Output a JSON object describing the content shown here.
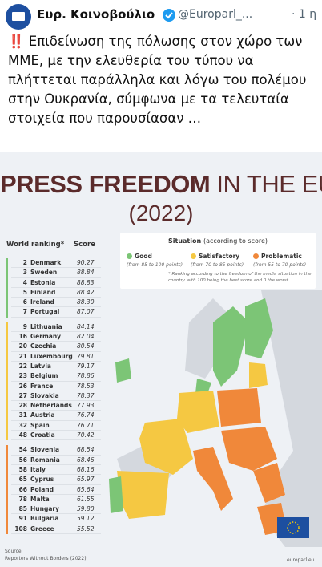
{
  "tweet": {
    "author": "Ευρ. Κοινοβούλιο",
    "handle": "@Europarl_...",
    "time": "· 1 η",
    "text": "‼️ Επιδείνωση της πόλωσης στον χώρο των ΜΜΕ, με την ελευθερία του τύπου να πλήττεται παράλληλα και λόγω του πολέμου στην Ουκρανία, σύμφωνα με τα τελευταία στοιχεία που παρουσίασαν …"
  },
  "infographic": {
    "title_bold": "PRESS FREEDOM",
    "title_light": "IN THE EU",
    "year": "(2022)",
    "ranking_header": "World ranking*",
    "score_header": "Score",
    "groups": [
      {
        "rows": [
          {
            "rank": 2,
            "country": "Denmark",
            "score": "90.27"
          },
          {
            "rank": 3,
            "country": "Sweden",
            "score": "88.84"
          },
          {
            "rank": 4,
            "country": "Estonia",
            "score": "88.83"
          },
          {
            "rank": 5,
            "country": "Finland",
            "score": "88.42"
          },
          {
            "rank": 6,
            "country": "Ireland",
            "score": "88.30"
          },
          {
            "rank": 7,
            "country": "Portugal",
            "score": "87.07"
          }
        ]
      },
      {
        "rows": [
          {
            "rank": 9,
            "country": "Lithuania",
            "score": "84.14"
          },
          {
            "rank": 16,
            "country": "Germany",
            "score": "82.04"
          },
          {
            "rank": 20,
            "country": "Czechia",
            "score": "80.54"
          },
          {
            "rank": 21,
            "country": "Luxembourg",
            "score": "79.81"
          },
          {
            "rank": 22,
            "country": "Latvia",
            "score": "79.17"
          },
          {
            "rank": 23,
            "country": "Belgium",
            "score": "78.86"
          },
          {
            "rank": 26,
            "country": "France",
            "score": "78.53"
          },
          {
            "rank": 27,
            "country": "Slovakia",
            "score": "78.37"
          },
          {
            "rank": 28,
            "country": "Netherlands",
            "score": "77.93"
          },
          {
            "rank": 31,
            "country": "Austria",
            "score": "76.74"
          },
          {
            "rank": 32,
            "country": "Spain",
            "score": "76.71"
          },
          {
            "rank": 48,
            "country": "Croatia",
            "score": "70.42"
          }
        ]
      },
      {
        "rows": [
          {
            "rank": 54,
            "country": "Slovenia",
            "score": "68.54"
          },
          {
            "rank": 56,
            "country": "Romania",
            "score": "68.46"
          },
          {
            "rank": 58,
            "country": "Italy",
            "score": "68.16"
          },
          {
            "rank": 65,
            "country": "Cyprus",
            "score": "65.97"
          },
          {
            "rank": 66,
            "country": "Poland",
            "score": "65.64"
          },
          {
            "rank": 78,
            "country": "Malta",
            "score": "61.55"
          },
          {
            "rank": 85,
            "country": "Hungary",
            "score": "59.80"
          },
          {
            "rank": 91,
            "country": "Bulgaria",
            "score": "59.12"
          },
          {
            "rank": 108,
            "country": "Greece",
            "score": "55.52"
          }
        ]
      }
    ],
    "legend": {
      "title": "Situation",
      "subtitle": "(according to score)",
      "items": [
        {
          "label": "Good",
          "range": "(from 85 to 100 points)"
        },
        {
          "label": "Satisfactory",
          "range": "(from 70 to 85 points)"
        },
        {
          "label": "Problematic",
          "range": "(from 55 to 70 points)"
        }
      ],
      "note": "* Ranking according to the freedom of the media situation in the country with 100 being the best score and 0 the worst"
    },
    "source_label": "Source:",
    "source": "Reporters Without Borders (2022)",
    "footer": "europarl.eu"
  }
}
